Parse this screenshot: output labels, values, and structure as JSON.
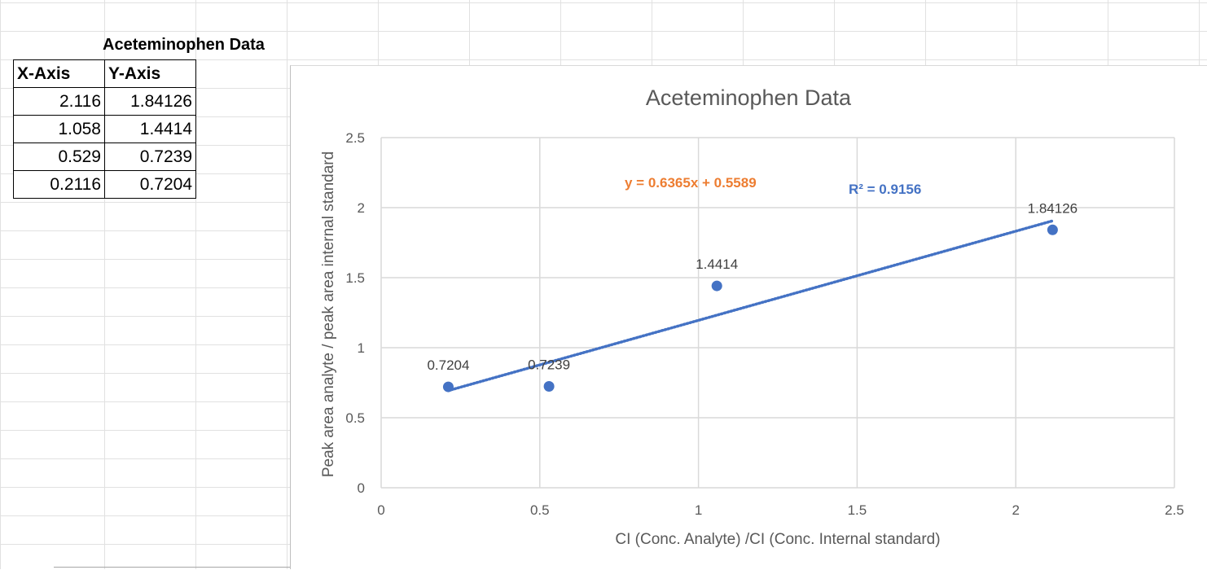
{
  "sheet": {
    "title": "Aceteminophen Data",
    "table": {
      "headers": [
        "X-Axis",
        "Y-Axis"
      ],
      "rows": [
        [
          "2.116",
          "1.84126"
        ],
        [
          "1.058",
          "1.4414"
        ],
        [
          "0.529",
          "0.7239"
        ],
        [
          "0.2116",
          "0.7204"
        ]
      ]
    }
  },
  "chart_data": {
    "type": "scatter",
    "title": "Aceteminophen Data",
    "xlabel": "CI (Conc. Analyte) /CI (Conc. Internal standard)",
    "ylabel": "Peak area analyte / peak area internal standard",
    "xlim": [
      0,
      2.5
    ],
    "ylim": [
      0,
      2.5
    ],
    "xticks": [
      "0",
      "0.5",
      "1",
      "1.5",
      "2",
      "2.5"
    ],
    "yticks": [
      "0",
      "0.5",
      "1",
      "1.5",
      "2",
      "2.5"
    ],
    "grid": true,
    "series": [
      {
        "x": [
          2.116,
          1.058,
          0.529,
          0.2116
        ],
        "y": [
          1.84126,
          1.4414,
          0.7239,
          0.7204
        ],
        "labels": [
          "1.84126",
          "1.4414",
          "0.7239",
          "0.7204"
        ],
        "color": "#4472c4"
      }
    ],
    "trendline": {
      "type": "linear",
      "slope": 0.6365,
      "intercept": 0.5589,
      "style": "dotted",
      "color": "#4472c4",
      "equation": "y = 0.6365x + 0.5589",
      "equation_color": "#ed7d31",
      "r_squared": "R² = 0.9156",
      "r_squared_color": "#4472c4"
    }
  }
}
